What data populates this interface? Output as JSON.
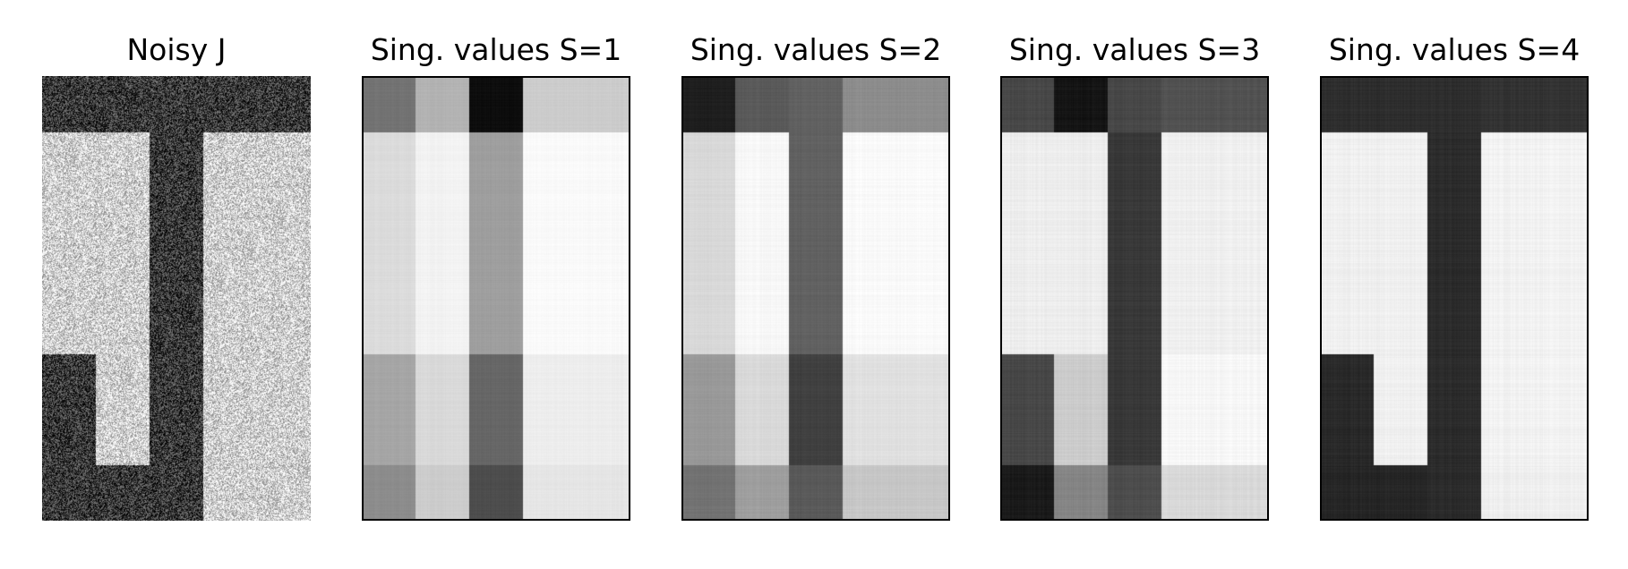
{
  "panels": [
    {
      "title": "Noisy J",
      "framed": false,
      "noise": 0.3,
      "cells": [
        [
          0.22,
          0.22,
          0.22,
          0.22,
          0.22
        ],
        [
          0.82,
          0.82,
          0.22,
          0.82,
          0.82
        ],
        [
          0.82,
          0.82,
          0.22,
          0.82,
          0.82
        ],
        [
          0.82,
          0.82,
          0.22,
          0.82,
          0.82
        ],
        [
          0.82,
          0.82,
          0.22,
          0.82,
          0.82
        ],
        [
          0.22,
          0.82,
          0.22,
          0.82,
          0.82
        ],
        [
          0.22,
          0.82,
          0.22,
          0.82,
          0.82
        ],
        [
          0.22,
          0.22,
          0.22,
          0.82,
          0.82
        ]
      ]
    },
    {
      "title": "Sing. values S=1",
      "framed": true,
      "noise": 0.03,
      "cells": [
        [
          0.45,
          0.7,
          0.05,
          0.8,
          0.8
        ],
        [
          0.86,
          0.95,
          0.62,
          0.98,
          0.98
        ],
        [
          0.86,
          0.95,
          0.62,
          0.98,
          0.98
        ],
        [
          0.86,
          0.95,
          0.62,
          0.98,
          0.98
        ],
        [
          0.86,
          0.95,
          0.62,
          0.98,
          0.98
        ],
        [
          0.65,
          0.85,
          0.4,
          0.93,
          0.93
        ],
        [
          0.65,
          0.85,
          0.4,
          0.93,
          0.93
        ],
        [
          0.55,
          0.8,
          0.3,
          0.9,
          0.9
        ]
      ]
    },
    {
      "title": "Sing. values S=2",
      "framed": true,
      "noise": 0.04,
      "cells": [
        [
          0.12,
          0.35,
          0.38,
          0.55,
          0.55
        ],
        [
          0.85,
          0.97,
          0.38,
          0.98,
          0.98
        ],
        [
          0.85,
          0.97,
          0.38,
          0.98,
          0.98
        ],
        [
          0.85,
          0.97,
          0.38,
          0.98,
          0.98
        ],
        [
          0.85,
          0.97,
          0.38,
          0.98,
          0.98
        ],
        [
          0.6,
          0.85,
          0.25,
          0.88,
          0.88
        ],
        [
          0.6,
          0.85,
          0.25,
          0.88,
          0.88
        ],
        [
          0.45,
          0.62,
          0.35,
          0.78,
          0.78
        ]
      ]
    },
    {
      "title": "Sing. values S=3",
      "framed": true,
      "noise": 0.05,
      "cells": [
        [
          0.28,
          0.08,
          0.28,
          0.32,
          0.32
        ],
        [
          0.93,
          0.93,
          0.22,
          0.94,
          0.94
        ],
        [
          0.93,
          0.93,
          0.22,
          0.94,
          0.94
        ],
        [
          0.93,
          0.93,
          0.22,
          0.94,
          0.94
        ],
        [
          0.93,
          0.93,
          0.22,
          0.94,
          0.94
        ],
        [
          0.28,
          0.8,
          0.22,
          0.97,
          0.97
        ],
        [
          0.28,
          0.8,
          0.22,
          0.97,
          0.97
        ],
        [
          0.1,
          0.52,
          0.3,
          0.85,
          0.85
        ]
      ]
    },
    {
      "title": "Sing. values S=4",
      "framed": true,
      "noise": 0.05,
      "cells": [
        [
          0.18,
          0.18,
          0.18,
          0.2,
          0.2
        ],
        [
          0.94,
          0.94,
          0.17,
          0.95,
          0.95
        ],
        [
          0.94,
          0.94,
          0.17,
          0.95,
          0.95
        ],
        [
          0.94,
          0.94,
          0.17,
          0.95,
          0.95
        ],
        [
          0.94,
          0.94,
          0.17,
          0.95,
          0.95
        ],
        [
          0.16,
          0.94,
          0.17,
          0.95,
          0.95
        ],
        [
          0.16,
          0.94,
          0.17,
          0.95,
          0.95
        ],
        [
          0.15,
          0.15,
          0.17,
          0.94,
          0.94
        ]
      ]
    }
  ]
}
